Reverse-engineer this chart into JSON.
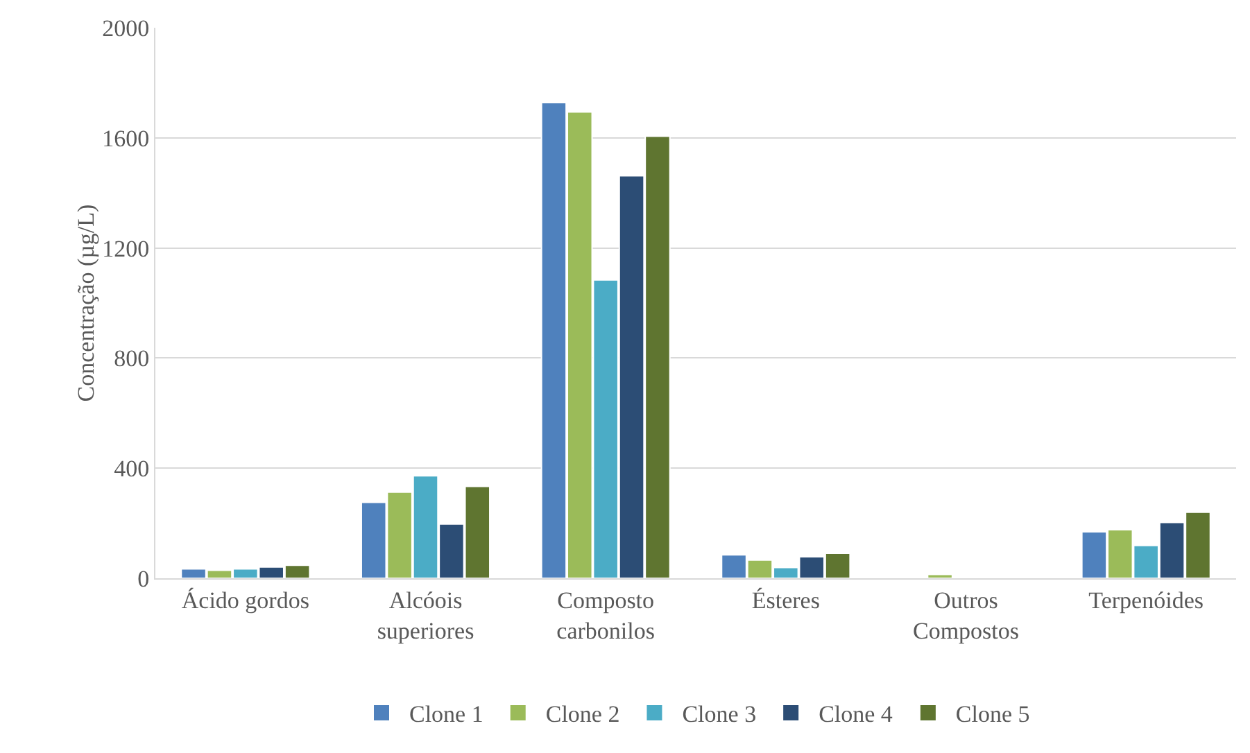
{
  "chart_data": {
    "type": "bar",
    "ylabel": "Concentração (µg/L)",
    "categories": [
      "Ácido gordos",
      "Alcóois\nsuperiores",
      "Composto\ncarbonilos",
      "Ésteres",
      "Outros\nCompostos",
      "Terpenóides"
    ],
    "series": [
      {
        "name": "Clone 1",
        "color": "#4f81bd",
        "values": [
          34,
          276,
          1728,
          85,
          null,
          169
        ]
      },
      {
        "name": "Clone 2",
        "color": "#9bbb59",
        "values": [
          29,
          313,
          1694,
          66,
          14,
          176
        ]
      },
      {
        "name": "Clone 3",
        "color": "#4bacc6",
        "values": [
          34,
          372,
          1084,
          39,
          null,
          119
        ]
      },
      {
        "name": "Clone 4",
        "color": "#2c4d75",
        "values": [
          41,
          197,
          1462,
          78,
          null,
          203
        ]
      },
      {
        "name": "Clone 5",
        "color": "#5f7530",
        "values": [
          47,
          334,
          1606,
          91,
          null,
          240
        ]
      }
    ],
    "ylim": [
      0,
      2000
    ],
    "yticks": [
      0,
      400,
      800,
      1200,
      1600,
      2000
    ],
    "grid": "y",
    "legend": "bottom"
  }
}
